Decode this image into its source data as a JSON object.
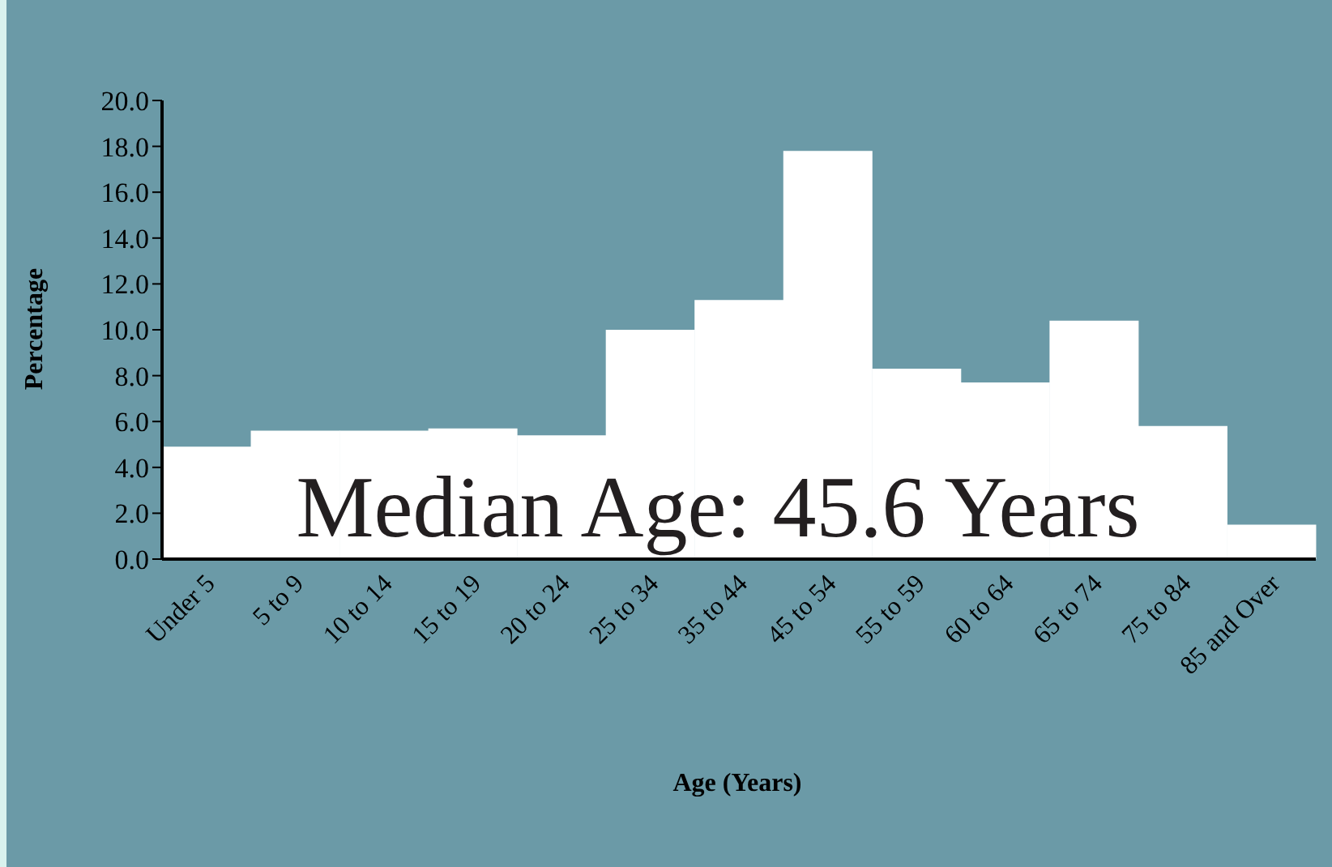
{
  "chart_data": {
    "type": "bar",
    "xlabel": "Age (Years)",
    "ylabel": "Percentage",
    "annotations": [
      "Median Age: 45.6 Years"
    ],
    "categories": [
      "Under 5",
      "5 to 9",
      "10 to 14",
      "15 to 19",
      "20 to 24",
      "25 to 34",
      "35 to 44",
      "45 to 54",
      "55 to 59",
      "60 to 64",
      "65 to 74",
      "75 to 84",
      "85 and Over"
    ],
    "values": [
      4.9,
      5.6,
      5.6,
      5.7,
      5.4,
      10.0,
      11.3,
      17.8,
      8.3,
      7.7,
      10.4,
      5.8,
      1.5
    ],
    "color": "#ffffff",
    "ylim": [
      0,
      20
    ],
    "yticks": [
      {
        "value": 0,
        "label": "0.0"
      },
      {
        "value": 2,
        "label": "2.0"
      },
      {
        "value": 4,
        "label": "4.0"
      },
      {
        "value": 6,
        "label": "6.0"
      },
      {
        "value": 8,
        "label": "8.0"
      },
      {
        "value": 10,
        "label": "10.0"
      },
      {
        "value": 12,
        "label": "12.0"
      },
      {
        "value": 14,
        "label": "14.0"
      },
      {
        "value": 16,
        "label": "16.0"
      },
      {
        "value": 18,
        "label": "18.0"
      },
      {
        "value": 20,
        "label": "20.0"
      }
    ],
    "grid": false,
    "legend": false
  }
}
